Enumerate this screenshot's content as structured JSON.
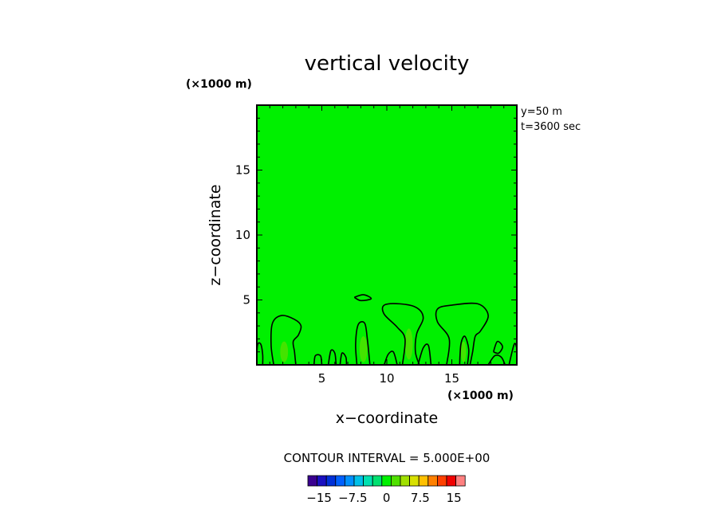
{
  "chart_data": {
    "type": "heatmap",
    "title": "vertical velocity",
    "xlabel": "x−coordinate",
    "ylabel": "z−coordinate",
    "x_unit": "(×1000 m)",
    "z_unit": "(×1000 m)",
    "xlim": [
      0,
      20
    ],
    "ylim": [
      0,
      20
    ],
    "x_ticks": [
      5,
      10,
      15
    ],
    "y_ticks": [
      5,
      10,
      15
    ],
    "x_tick_labels": [
      "5",
      "10",
      "15"
    ],
    "y_tick_labels": [
      "5",
      "10",
      "15"
    ],
    "info_lines": [
      "y=50  m",
      "t=3600  sec"
    ],
    "contour_interval_text": "CONTOUR  INTERVAL = 5.000E+00",
    "background_color": "#00f000",
    "colorbar": {
      "colors": [
        "#3a0090",
        "#1a10c0",
        "#0030d8",
        "#0060ff",
        "#0090ff",
        "#00c0e8",
        "#00e0b0",
        "#00e070",
        "#00f000",
        "#50e000",
        "#a0e000",
        "#d8e000",
        "#ffc000",
        "#ff8000",
        "#ff4000",
        "#f00000",
        "#ff8080"
      ],
      "tick_values": [
        -15,
        -7.5,
        0,
        7.5,
        15
      ],
      "tick_labels": [
        "−15",
        "−7.5",
        "0",
        "7.5",
        "15"
      ],
      "range": [
        -17.5,
        17.5
      ]
    },
    "contours": [
      {
        "points": [
          [
            0,
            0
          ],
          [
            0.05,
            1.5
          ],
          [
            0.3,
            1.6
          ],
          [
            0.45,
            0.8
          ],
          [
            0.45,
            0
          ]
        ]
      },
      {
        "points": [
          [
            1.3,
            0
          ],
          [
            1.1,
            1.5
          ],
          [
            1.2,
            3.2
          ],
          [
            1.9,
            3.8
          ],
          [
            2.9,
            3.5
          ],
          [
            3.4,
            3.0
          ],
          [
            3.2,
            2.3
          ],
          [
            2.8,
            1.8
          ],
          [
            2.9,
            1.0
          ],
          [
            3.0,
            0
          ]
        ]
      },
      {
        "points": [
          [
            4.4,
            0
          ],
          [
            4.5,
            0.7
          ],
          [
            4.9,
            0.7
          ],
          [
            5.0,
            0
          ]
        ]
      },
      {
        "points": [
          [
            5.5,
            0
          ],
          [
            5.7,
            1.1
          ],
          [
            6.0,
            0.9
          ],
          [
            6.1,
            0
          ]
        ]
      },
      {
        "points": [
          [
            6.4,
            0
          ],
          [
            6.55,
            0.9
          ],
          [
            6.85,
            0.6
          ],
          [
            6.9,
            0
          ]
        ]
      },
      {
        "points": [
          [
            7.7,
            0
          ],
          [
            7.6,
            1.6
          ],
          [
            7.8,
            3.1
          ],
          [
            8.3,
            3.2
          ],
          [
            8.5,
            2.0
          ],
          [
            8.7,
            0
          ]
        ]
      },
      {
        "points": [
          [
            7.5,
            5.2
          ],
          [
            8.2,
            5.4
          ],
          [
            8.8,
            5.1
          ],
          [
            8.0,
            4.95
          ],
          [
            7.5,
            5.2
          ]
        ]
      },
      {
        "points": [
          [
            9.8,
            0
          ],
          [
            10.1,
            0.8
          ],
          [
            10.5,
            1.0
          ],
          [
            10.8,
            0
          ]
        ]
      },
      {
        "points": [
          [
            11.2,
            0
          ],
          [
            11.4,
            2.0
          ],
          [
            10.8,
            2.9
          ],
          [
            9.8,
            3.9
          ],
          [
            9.8,
            4.6
          ],
          [
            11.0,
            4.7
          ],
          [
            12.3,
            4.4
          ],
          [
            12.8,
            3.6
          ],
          [
            12.3,
            2.4
          ],
          [
            12.2,
            1.0
          ],
          [
            12.5,
            0
          ]
        ]
      },
      {
        "points": [
          [
            12.4,
            0
          ],
          [
            12.8,
            1.3
          ],
          [
            13.2,
            1.5
          ],
          [
            13.4,
            0
          ]
        ]
      },
      {
        "points": [
          [
            14.6,
            0
          ],
          [
            14.8,
            2.0
          ],
          [
            13.9,
            3.3
          ],
          [
            13.9,
            4.3
          ],
          [
            15.0,
            4.6
          ],
          [
            17.0,
            4.7
          ],
          [
            17.8,
            3.8
          ],
          [
            17.2,
            2.6
          ],
          [
            16.8,
            2.2
          ],
          [
            16.6,
            1.0
          ],
          [
            16.4,
            0
          ]
        ]
      },
      {
        "points": [
          [
            15.6,
            0
          ],
          [
            15.7,
            1.6
          ],
          [
            16.0,
            2.2
          ],
          [
            16.3,
            1.2
          ],
          [
            16.2,
            0
          ]
        ]
      },
      {
        "points": [
          [
            18.2,
            1.0
          ],
          [
            18.5,
            1.8
          ],
          [
            18.9,
            1.4
          ],
          [
            18.6,
            0.9
          ],
          [
            18.2,
            1.0
          ]
        ]
      },
      {
        "points": [
          [
            17.8,
            0
          ],
          [
            18.3,
            0.7
          ],
          [
            18.8,
            0.6
          ],
          [
            19.1,
            0
          ]
        ]
      },
      {
        "points": [
          [
            19.4,
            0
          ],
          [
            19.8,
            1.6
          ],
          [
            20,
            1.3
          ]
        ]
      }
    ],
    "highlights": [
      {
        "x": 2.1,
        "z": 1.0,
        "rx": 0.3,
        "rz": 0.8
      },
      {
        "x": 8.2,
        "z": 1.2,
        "rx": 0.3,
        "rz": 1.0
      },
      {
        "x": 11.7,
        "z": 1.6,
        "rx": 0.3,
        "rz": 1.2
      },
      {
        "x": 15.9,
        "z": 1.0,
        "rx": 0.2,
        "rz": 0.8
      }
    ]
  }
}
